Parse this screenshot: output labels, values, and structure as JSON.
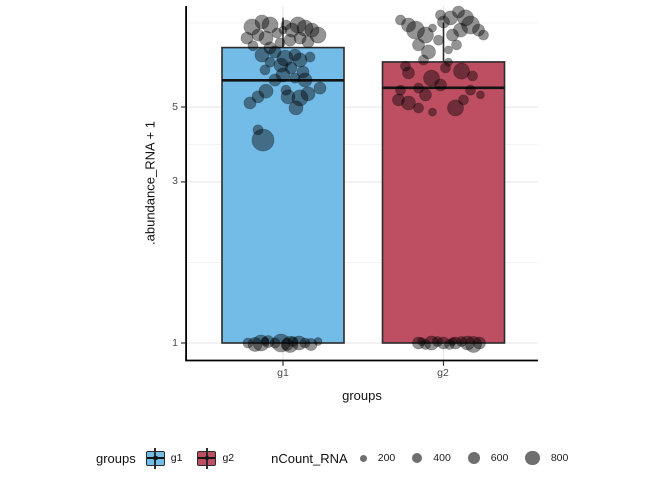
{
  "figure": {
    "background": "#ffffff"
  },
  "chart_data": {
    "type": "boxplot-jitter",
    "title": "",
    "xlabel": "groups",
    "ylabel": ".abundance_RNA + 1",
    "categories": [
      "g1",
      "g2"
    ],
    "y_scale": "log10",
    "ylim": [
      1,
      9.9
    ],
    "y_ticks": [
      {
        "label": "5",
        "value": 5
      },
      {
        "label": "3",
        "value": 3
      },
      {
        "label": "1",
        "value": 1
      }
    ],
    "y_minor_breaks": [
      8.87,
      3.87,
      1.73
    ],
    "grid": {
      "major_color": "#e7e7e7",
      "minor_color": "#f3f3f3"
    },
    "style": {
      "box_border": "#2b2b2b",
      "median_color": "#141414",
      "point_color": "#000000",
      "point_opacity": 0.42,
      "axis_line_color": "#000000",
      "tick_color": "#333333"
    },
    "series": [
      {
        "name": "g1",
        "color": "#74BCE8",
        "box": {
          "q1": 1.0,
          "median": 6.0,
          "q3": 7.5,
          "whisker_low": 1.0,
          "whisker_high": 9.2
        }
      },
      {
        "name": "g2",
        "color": "#BE4F62",
        "box": {
          "q1": 1.0,
          "median": 5.7,
          "q3": 6.8,
          "whisker_low": 1.0,
          "whisker_high": 8.9
        }
      }
    ],
    "points_format": [
      "group_index",
      "abundance_value",
      "nCount_RNA",
      "jitter_px"
    ],
    "points": [
      [
        0,
        8.63,
        1050,
        -31
      ],
      [
        0,
        8.93,
        800,
        -21
      ],
      [
        0,
        8.75,
        1050,
        -13
      ],
      [
        0,
        8.17,
        590,
        -25
      ],
      [
        0,
        8.0,
        800,
        -17
      ],
      [
        0,
        8.0,
        590,
        -36
      ],
      [
        0,
        8.28,
        410,
        -6
      ],
      [
        0,
        8.45,
        260,
        0
      ],
      [
        0,
        8.75,
        410,
        3
      ],
      [
        0,
        8.45,
        800,
        9
      ],
      [
        0,
        8.75,
        1050,
        15
      ],
      [
        0,
        8.57,
        1050,
        22
      ],
      [
        0,
        8.45,
        800,
        29
      ],
      [
        0,
        8.17,
        1050,
        35
      ],
      [
        0,
        8.0,
        590,
        17
      ],
      [
        0,
        7.89,
        590,
        7
      ],
      [
        0,
        7.74,
        410,
        -3
      ],
      [
        0,
        7.8,
        590,
        25
      ],
      [
        0,
        7.59,
        410,
        -30
      ],
      [
        0,
        7.48,
        590,
        -13
      ],
      [
        0,
        7.13,
        800,
        -21
      ],
      [
        0,
        7.28,
        590,
        -8
      ],
      [
        0,
        6.98,
        1050,
        2
      ],
      [
        0,
        7.13,
        590,
        12
      ],
      [
        0,
        6.79,
        410,
        -13
      ],
      [
        0,
        6.89,
        800,
        17
      ],
      [
        0,
        7.03,
        410,
        27
      ],
      [
        0,
        6.65,
        800,
        -2
      ],
      [
        0,
        6.53,
        590,
        8
      ],
      [
        0,
        6.44,
        410,
        -18
      ],
      [
        0,
        6.35,
        590,
        20
      ],
      [
        0,
        6.22,
        800,
        0
      ],
      [
        0,
        6.09,
        410,
        12
      ],
      [
        0,
        6.01,
        590,
        -8
      ],
      [
        0,
        6.01,
        800,
        22
      ],
      [
        0,
        5.57,
        800,
        -17
      ],
      [
        0,
        5.36,
        590,
        -25
      ],
      [
        0,
        5.14,
        590,
        -33
      ],
      [
        0,
        5.36,
        800,
        5
      ],
      [
        0,
        5.32,
        1050,
        17
      ],
      [
        0,
        5.47,
        800,
        25
      ],
      [
        0,
        4.97,
        800,
        13
      ],
      [
        0,
        5.61,
        410,
        3
      ],
      [
        0,
        5.69,
        590,
        37
      ],
      [
        0,
        4.28,
        410,
        -25
      ],
      [
        0,
        3.99,
        1980,
        -20
      ],
      [
        0,
        1.0,
        410,
        -35
      ],
      [
        0,
        0.99,
        800,
        -28
      ],
      [
        0,
        1.0,
        1050,
        -22
      ],
      [
        0,
        1.01,
        590,
        -15
      ],
      [
        0,
        1.0,
        410,
        -8
      ],
      [
        0,
        1.0,
        1320,
        -2
      ],
      [
        0,
        0.99,
        590,
        4
      ],
      [
        0,
        1.01,
        410,
        10
      ],
      [
        0,
        1.0,
        800,
        16
      ],
      [
        0,
        1.0,
        410,
        22
      ],
      [
        0,
        0.99,
        590,
        28
      ],
      [
        0,
        1.01,
        260,
        35
      ],
      [
        0,
        1.01,
        260,
        -18
      ],
      [
        0,
        0.99,
        1050,
        7
      ],
      [
        1,
        9.05,
        410,
        -43
      ],
      [
        1,
        8.75,
        800,
        -35
      ],
      [
        1,
        8.45,
        1320,
        -28
      ],
      [
        1,
        8.17,
        1050,
        -18
      ],
      [
        1,
        8.57,
        260,
        -11
      ],
      [
        1,
        9.36,
        410,
        -3
      ],
      [
        1,
        8.93,
        590,
        0
      ],
      [
        1,
        9.18,
        800,
        7
      ],
      [
        1,
        9.56,
        590,
        15
      ],
      [
        1,
        9.18,
        1050,
        22
      ],
      [
        1,
        8.75,
        1320,
        27
      ],
      [
        1,
        8.45,
        800,
        17
      ],
      [
        1,
        8.17,
        590,
        9
      ],
      [
        1,
        7.89,
        410,
        -5
      ],
      [
        1,
        8.45,
        590,
        35
      ],
      [
        1,
        8.17,
        410,
        40
      ],
      [
        1,
        7.64,
        590,
        -25
      ],
      [
        1,
        7.64,
        410,
        13
      ],
      [
        1,
        7.28,
        800,
        -15
      ],
      [
        1,
        7.38,
        260,
        5
      ],
      [
        1,
        6.31,
        590,
        -35
      ],
      [
        1,
        6.09,
        1050,
        -12
      ],
      [
        1,
        6.61,
        410,
        -38
      ],
      [
        1,
        6.53,
        410,
        2
      ],
      [
        1,
        6.79,
        260,
        5
      ],
      [
        1,
        6.39,
        1050,
        18
      ],
      [
        1,
        6.18,
        410,
        29
      ],
      [
        1,
        5.69,
        410,
        -25
      ],
      [
        1,
        5.81,
        590,
        -3
      ],
      [
        1,
        5.43,
        590,
        -18
      ],
      [
        1,
        5.61,
        410,
        -43
      ],
      [
        1,
        5.25,
        590,
        -45
      ],
      [
        1,
        5.14,
        800,
        -35
      ],
      [
        1,
        4.97,
        410,
        -25
      ],
      [
        1,
        4.83,
        260,
        -11
      ],
      [
        1,
        4.97,
        1050,
        12
      ],
      [
        1,
        5.61,
        410,
        27
      ],
      [
        1,
        5.43,
        260,
        37
      ],
      [
        1,
        5.25,
        410,
        20
      ],
      [
        1,
        6.89,
        410,
        -20
      ],
      [
        1,
        1.0,
        590,
        -25
      ],
      [
        1,
        0.99,
        410,
        -18
      ],
      [
        1,
        1.0,
        800,
        -12
      ],
      [
        1,
        1.01,
        410,
        -6
      ],
      [
        1,
        1.0,
        590,
        0
      ],
      [
        1,
        0.99,
        410,
        6
      ],
      [
        1,
        1.0,
        590,
        12
      ],
      [
        1,
        1.01,
        410,
        18
      ],
      [
        1,
        1.0,
        800,
        24
      ],
      [
        1,
        0.99,
        1050,
        30
      ],
      [
        1,
        1.0,
        590,
        36
      ],
      [
        1,
        1.01,
        260,
        -22
      ],
      [
        1,
        1.01,
        260,
        9
      ]
    ],
    "size_scale": {
      "radius_factor": 0.2475
    }
  },
  "legend": {
    "groups": {
      "title": "groups",
      "items": [
        {
          "label": "g1",
          "color": "#74BCE8"
        },
        {
          "label": "g2",
          "color": "#BE4F62"
        }
      ]
    },
    "size": {
      "title": "nCount_RNA",
      "items": [
        {
          "label": "200",
          "value": 200
        },
        {
          "label": "400",
          "value": 400
        },
        {
          "label": "600",
          "value": 600
        },
        {
          "label": "800",
          "value": 800
        }
      ]
    }
  }
}
